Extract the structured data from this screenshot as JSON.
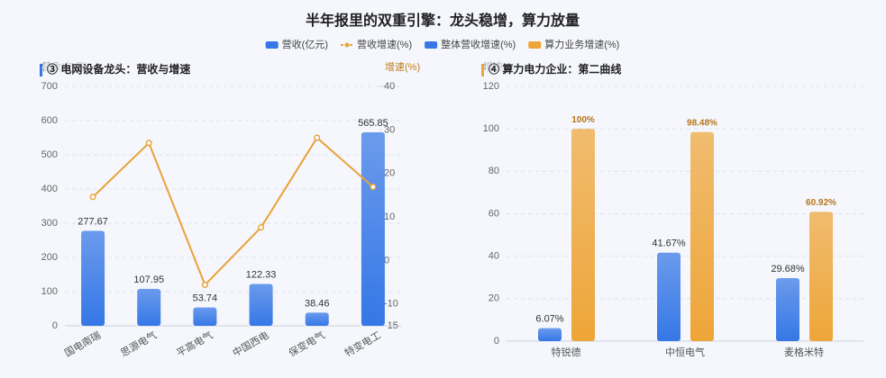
{
  "title": "半年报里的双重引擎：龙头稳增，算力放量",
  "chart_data": [
    {
      "type": "combo",
      "title": "③ 电网设备龙头：营收与增速",
      "ylabel": "营收(亿元)",
      "y2label": "增速(%)",
      "categories": [
        "国电南瑞",
        "思源电气",
        "平高电气",
        "中国西电",
        "保变电气",
        "特变电工"
      ],
      "series": [
        {
          "name": "营收(亿元)",
          "type": "bar",
          "color": "#3577e6",
          "values": [
            277.67,
            107.95,
            53.74,
            122.33,
            38.46,
            565.85
          ]
        },
        {
          "name": "营收增速(%)",
          "type": "line",
          "axis": "y2",
          "color": "#e9a23b",
          "values": [
            14.6,
            27.0,
            -5.6,
            7.6,
            28.2,
            16.9
          ]
        }
      ],
      "ylim": [
        0,
        700
      ],
      "yticks": [
        0,
        100,
        200,
        300,
        400,
        500,
        600,
        700
      ],
      "y2lim": [
        -15,
        40
      ],
      "y2ticks": [
        -15,
        -10,
        0,
        10,
        20,
        30,
        40
      ],
      "grid": true
    },
    {
      "type": "bar",
      "title": "④ 算力电力企业：第二曲线",
      "ylabel": "增速(%)",
      "categories": [
        "特锐德",
        "中恒电气",
        "麦格米特"
      ],
      "series": [
        {
          "name": "整体营收增速(%)",
          "type": "bar",
          "color": "#3577e6",
          "values": [
            6.07,
            41.67,
            29.68
          ],
          "value_labels": [
            "6.07%",
            "41.67%",
            "29.68%"
          ]
        },
        {
          "name": "算力业务增速(%)",
          "type": "bar",
          "color": "#eea538",
          "values": [
            100,
            98.48,
            60.92
          ],
          "value_labels": [
            "100%",
            "98.48%",
            "60.92%"
          ]
        }
      ],
      "ylim": [
        0,
        120
      ],
      "yticks": [
        0,
        20,
        40,
        60,
        80,
        100,
        120
      ],
      "grid": true
    }
  ]
}
